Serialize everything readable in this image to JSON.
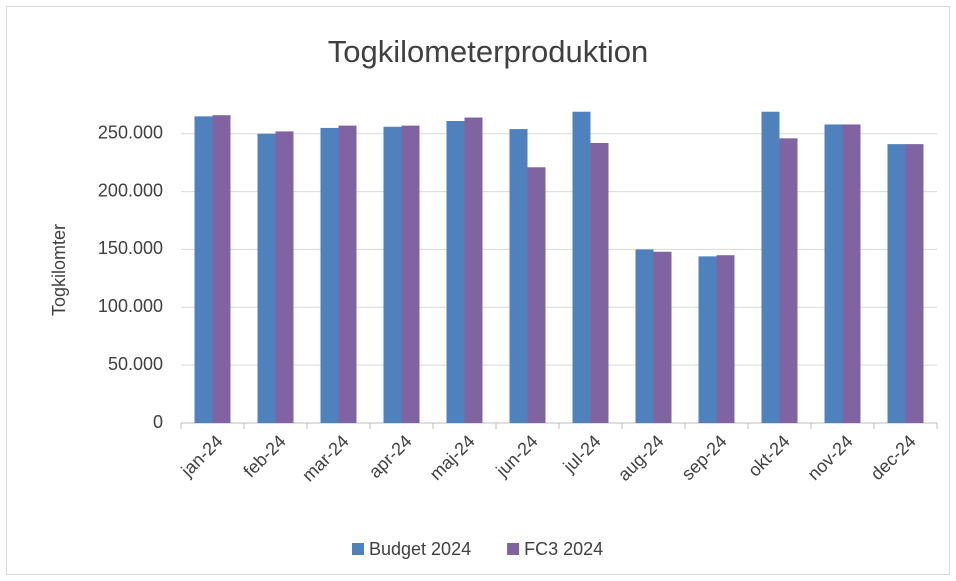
{
  "chart_data": {
    "type": "bar",
    "title": "Togkilometerproduktion",
    "y_label": "Togkilomter",
    "categories": [
      "jan-24",
      "feb-24",
      "mar-24",
      "apr-24",
      "maj-24",
      "jun-24",
      "jul-24",
      "aug-24",
      "sep-24",
      "okt-24",
      "nov-24",
      "dec-24"
    ],
    "series": [
      {
        "name": "Budget 2024",
        "color": "#4f81bd",
        "values": [
          265000,
          250000,
          255000,
          256000,
          261000,
          254000,
          269000,
          150000,
          144000,
          269000,
          258000,
          241000
        ]
      },
      {
        "name": "FC3 2024",
        "color": "#8064a2",
        "values": [
          266000,
          252000,
          257000,
          257000,
          264000,
          221000,
          242000,
          148000,
          145000,
          246000,
          258000,
          241000
        ]
      }
    ],
    "ylim": [
      0,
      280000
    ],
    "yticks": [
      0,
      {
        "value": 50000,
        "label": "50.000"
      },
      {
        "value": 100000,
        "label": "100.000"
      },
      {
        "value": 150000,
        "label": "150.000"
      },
      {
        "value": 200000,
        "label": "200.000"
      },
      {
        "value": 250000,
        "label": "250.000"
      }
    ],
    "grid": true,
    "legend": "bottom"
  }
}
